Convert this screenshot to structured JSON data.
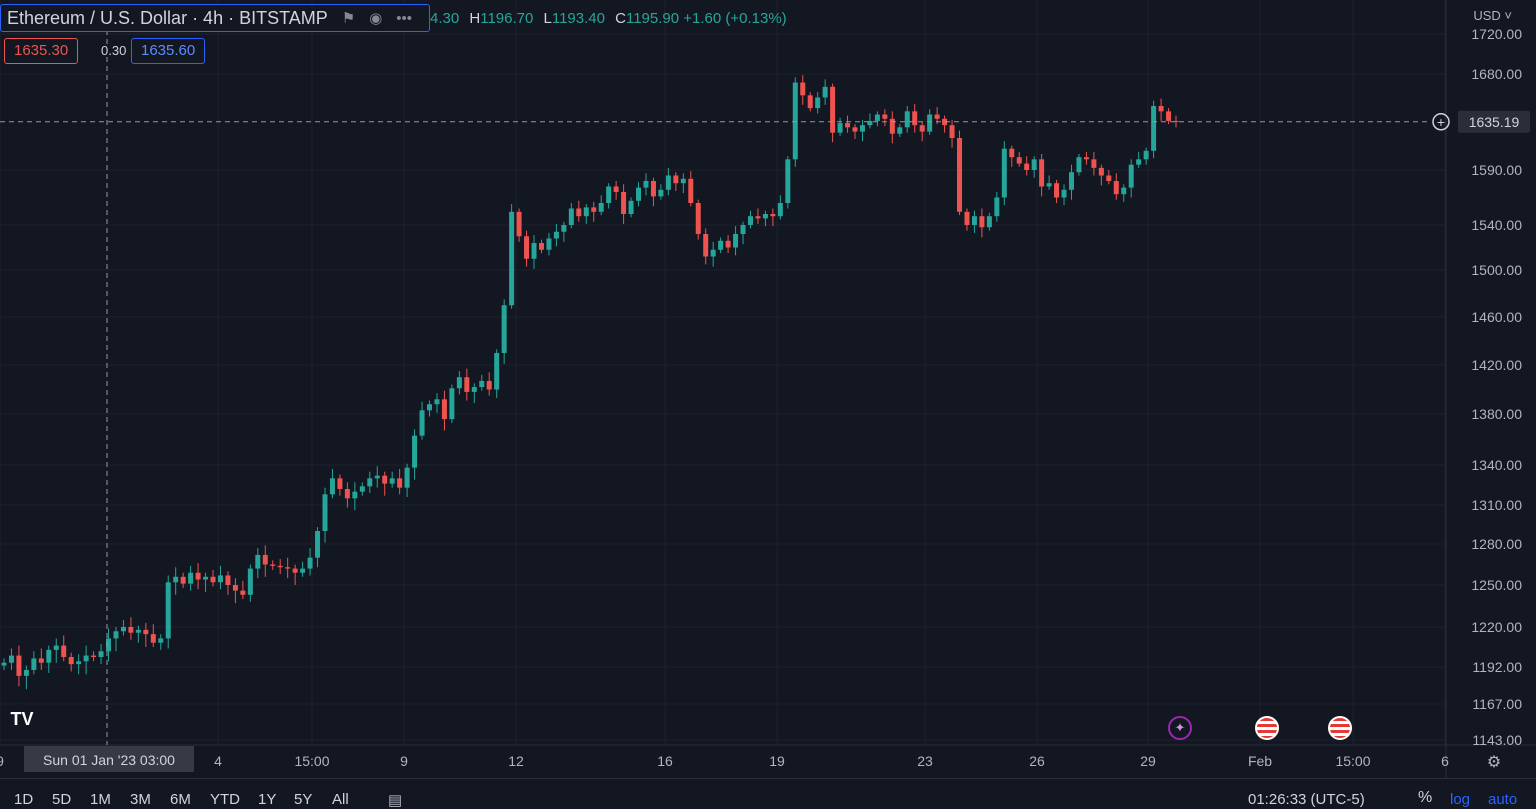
{
  "header": {
    "symbol": "Ethereum / U.S. Dollar · 4h · BITSTAMP",
    "ohlc": [
      {
        "k": "",
        "v": "4.30"
      },
      {
        "k": "H",
        "v": "1196.70"
      },
      {
        "k": "L",
        "v": "1193.40"
      },
      {
        "k": "C",
        "v": "1195.90"
      },
      {
        "k": "",
        "v": "+1.60 (+0.13%)"
      }
    ],
    "bid": "1635.30",
    "spread": "0.30",
    "ask": "1635.60",
    "currency": "USD"
  },
  "icons": [
    "flag-icon",
    "eye-icon",
    "more-icon",
    "add-alert-icon",
    "settings-icon",
    "calendar-icon",
    "lightning-icon",
    "us-flag-icon"
  ],
  "colors": {
    "up": "#26a69a",
    "down": "#ef5350",
    "bg": "#131722",
    "grid": "#1e222d",
    "accent": "#2962ff"
  },
  "bottom": {
    "ranges": [
      "1D",
      "5D",
      "1M",
      "3M",
      "6M",
      "YTD",
      "1Y",
      "5Y",
      "All"
    ],
    "clock": "01:26:33 (UTC-5)",
    "percent": "%",
    "log": "log",
    "auto": "auto"
  },
  "chart_data": {
    "type": "candlestick",
    "y_ticks": [
      "1720.00",
      "1680.00",
      "1590.00",
      "1540.00",
      "1500.00",
      "1460.00",
      "1420.00",
      "1380.00",
      "1340.00",
      "1310.00",
      "1280.00",
      "1250.00",
      "1220.00",
      "1192.00",
      "1167.00",
      "1143.00"
    ],
    "x_ticks": [
      "9",
      "4",
      "15:00",
      "9",
      "12",
      "16",
      "19",
      "23",
      "26",
      "29",
      "Feb",
      "15:00",
      "6"
    ],
    "crosshair_x_label": "Sun 01 Jan '23   03:00",
    "current_price_label": "1635.19",
    "current_price": 1635.19,
    "series": [
      {
        "c": 1195
      },
      {
        "c": 1200
      },
      {
        "c": 1186
      },
      {
        "c": 1190
      },
      {
        "c": 1198
      },
      {
        "c": 1195
      },
      {
        "c": 1204
      },
      {
        "c": 1207
      },
      {
        "c": 1199
      },
      {
        "c": 1194
      },
      {
        "c": 1196
      },
      {
        "c": 1200
      },
      {
        "c": 1199
      },
      {
        "c": 1203
      },
      {
        "c": 1212
      },
      {
        "c": 1217
      },
      {
        "c": 1220
      },
      {
        "c": 1216
      },
      {
        "c": 1218
      },
      {
        "c": 1215
      },
      {
        "c": 1209
      },
      {
        "c": 1212
      },
      {
        "c": 1252
      },
      {
        "c": 1256
      },
      {
        "c": 1251
      },
      {
        "c": 1259
      },
      {
        "c": 1254
      },
      {
        "c": 1256
      },
      {
        "c": 1252
      },
      {
        "c": 1257
      },
      {
        "c": 1250
      },
      {
        "c": 1246
      },
      {
        "c": 1243
      },
      {
        "c": 1262
      },
      {
        "c": 1272
      },
      {
        "c": 1265
      },
      {
        "c": 1264
      },
      {
        "c": 1263
      },
      {
        "c": 1262
      },
      {
        "c": 1259
      },
      {
        "c": 1262
      },
      {
        "c": 1270
      },
      {
        "c": 1290
      },
      {
        "c": 1318
      },
      {
        "c": 1330
      },
      {
        "c": 1322
      },
      {
        "c": 1315
      },
      {
        "c": 1320
      },
      {
        "c": 1324
      },
      {
        "c": 1330
      },
      {
        "c": 1332
      },
      {
        "c": 1326
      },
      {
        "c": 1330
      },
      {
        "c": 1323
      },
      {
        "c": 1338
      },
      {
        "c": 1363
      },
      {
        "c": 1383
      },
      {
        "c": 1388
      },
      {
        "c": 1392
      },
      {
        "c": 1376
      },
      {
        "c": 1401
      },
      {
        "c": 1410
      },
      {
        "c": 1398
      },
      {
        "c": 1402
      },
      {
        "c": 1407
      },
      {
        "c": 1400
      },
      {
        "c": 1430
      },
      {
        "c": 1470
      },
      {
        "c": 1552
      },
      {
        "c": 1530
      },
      {
        "c": 1510
      },
      {
        "c": 1524
      },
      {
        "c": 1518
      },
      {
        "c": 1528
      },
      {
        "c": 1534
      },
      {
        "c": 1540
      },
      {
        "c": 1555
      },
      {
        "c": 1548
      },
      {
        "c": 1556
      },
      {
        "c": 1552
      },
      {
        "c": 1560
      },
      {
        "c": 1575
      },
      {
        "c": 1570
      },
      {
        "c": 1550
      },
      {
        "c": 1562
      },
      {
        "c": 1574
      },
      {
        "c": 1580
      },
      {
        "c": 1566
      },
      {
        "c": 1572
      },
      {
        "c": 1585
      },
      {
        "c": 1578
      },
      {
        "c": 1582
      },
      {
        "c": 1560
      },
      {
        "c": 1532
      },
      {
        "c": 1512
      },
      {
        "c": 1518
      },
      {
        "c": 1526
      },
      {
        "c": 1520
      },
      {
        "c": 1532
      },
      {
        "c": 1540
      },
      {
        "c": 1548
      },
      {
        "c": 1546
      },
      {
        "c": 1550
      },
      {
        "c": 1548
      },
      {
        "c": 1560
      },
      {
        "c": 1600
      },
      {
        "c": 1672
      },
      {
        "c": 1660
      },
      {
        "c": 1648
      },
      {
        "c": 1658
      },
      {
        "c": 1668
      },
      {
        "c": 1625
      },
      {
        "c": 1634
      },
      {
        "c": 1630
      },
      {
        "c": 1626
      },
      {
        "c": 1632
      },
      {
        "c": 1636
      },
      {
        "c": 1642
      },
      {
        "c": 1638
      },
      {
        "c": 1624
      },
      {
        "c": 1630
      },
      {
        "c": 1645
      },
      {
        "c": 1632
      },
      {
        "c": 1626
      },
      {
        "c": 1642
      },
      {
        "c": 1638
      },
      {
        "c": 1632
      },
      {
        "c": 1620
      },
      {
        "c": 1552
      },
      {
        "c": 1540
      },
      {
        "c": 1548
      },
      {
        "c": 1538
      },
      {
        "c": 1548
      },
      {
        "c": 1565
      },
      {
        "c": 1610
      },
      {
        "c": 1602
      },
      {
        "c": 1596
      },
      {
        "c": 1590
      },
      {
        "c": 1600
      },
      {
        "c": 1575
      },
      {
        "c": 1578
      },
      {
        "c": 1565
      },
      {
        "c": 1572
      },
      {
        "c": 1588
      },
      {
        "c": 1602
      },
      {
        "c": 1600
      },
      {
        "c": 1592
      },
      {
        "c": 1585
      },
      {
        "c": 1580
      },
      {
        "c": 1568
      },
      {
        "c": 1574
      },
      {
        "c": 1595
      },
      {
        "c": 1600
      },
      {
        "c": 1608
      },
      {
        "c": 1650
      },
      {
        "c": 1645
      },
      {
        "c": 1636
      },
      {
        "c": 1635
      }
    ]
  }
}
